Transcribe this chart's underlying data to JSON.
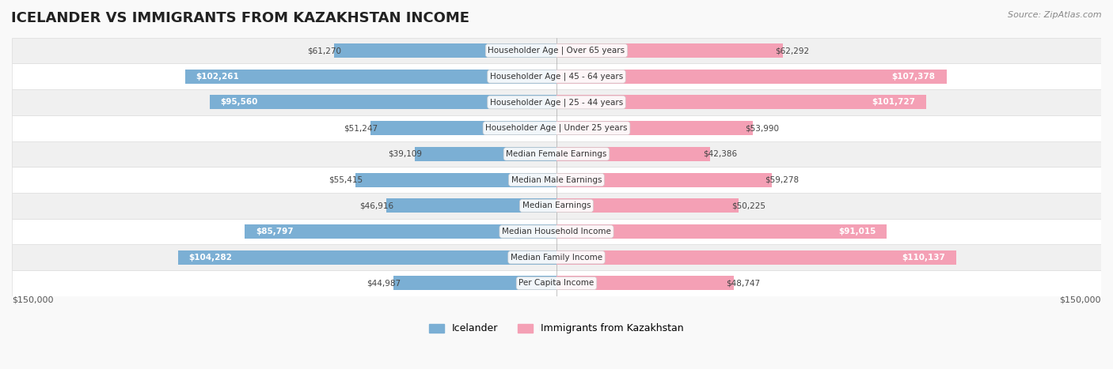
{
  "title": "ICELANDER VS IMMIGRANTS FROM KAZAKHSTAN INCOME",
  "source": "Source: ZipAtlas.com",
  "categories": [
    "Per Capita Income",
    "Median Family Income",
    "Median Household Income",
    "Median Earnings",
    "Median Male Earnings",
    "Median Female Earnings",
    "Householder Age | Under 25 years",
    "Householder Age | 25 - 44 years",
    "Householder Age | 45 - 64 years",
    "Householder Age | Over 65 years"
  ],
  "icelander_values": [
    44987,
    104282,
    85797,
    46916,
    55415,
    39109,
    51247,
    95560,
    102261,
    61270
  ],
  "kazakhstan_values": [
    48747,
    110137,
    91015,
    50225,
    59278,
    42386,
    53990,
    101727,
    107378,
    62292
  ],
  "icelander_labels": [
    "$44,987",
    "$104,282",
    "$85,797",
    "$46,916",
    "$55,415",
    "$39,109",
    "$51,247",
    "$95,560",
    "$102,261",
    "$61,270"
  ],
  "kazakhstan_labels": [
    "$48,747",
    "$110,137",
    "$91,015",
    "$50,225",
    "$59,278",
    "$42,386",
    "$53,990",
    "$101,727",
    "$107,378",
    "$62,292"
  ],
  "icelander_color": "#7bafd4",
  "kazakhstan_color": "#f4a0b5",
  "icelander_color_dark": "#5b8fbf",
  "kazakhstan_color_dark": "#e8789a",
  "max_value": 150000,
  "bar_height": 0.55,
  "bg_color": "#f5f5f5",
  "row_bg_color": "#ffffff",
  "row_alt_bg_color": "#f0f0f0",
  "legend_icelander": "Icelander",
  "legend_kazakhstan": "Immigrants from Kazakhstan",
  "xlabel_left": "$150,000",
  "xlabel_right": "$150,000"
}
